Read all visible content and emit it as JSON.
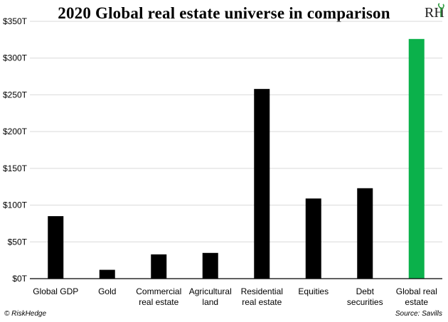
{
  "colors": {
    "bar": "#000000",
    "highlight": "#0bb14b",
    "logo_accent": "#2e9b3e"
  },
  "logo": {
    "text": "RH",
    "icon": "riskhedge-logo"
  },
  "footer": {
    "left": "© RiskHedge",
    "right": "Source: Savills"
  },
  "chart_data": {
    "type": "bar",
    "title": "2020 Global real estate universe in comparison",
    "categories": [
      [
        "Global GDP"
      ],
      [
        "Gold"
      ],
      [
        "Commercial",
        "real estate"
      ],
      [
        "Agricultural",
        "land"
      ],
      [
        "Residential",
        "real estate"
      ],
      [
        "Equities"
      ],
      [
        "Debt",
        "securities"
      ],
      [
        "Global real",
        "estate"
      ]
    ],
    "values": [
      85,
      12,
      33,
      35,
      258,
      109,
      123,
      326
    ],
    "highlight_index": 7,
    "ylim": [
      0,
      350
    ],
    "yticks": [
      0,
      50,
      100,
      150,
      200,
      250,
      300,
      350
    ],
    "ytick_labels": [
      "$0T",
      "$50T",
      "$100T",
      "$150T",
      "$200T",
      "$250T",
      "$300T",
      "$350T"
    ],
    "xlabel": "",
    "ylabel": "",
    "grid": true
  }
}
